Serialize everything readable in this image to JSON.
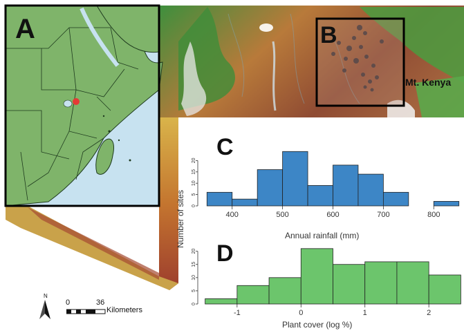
{
  "panels": {
    "a": {
      "letter": "A"
    },
    "b": {
      "letter": "B"
    },
    "c": {
      "letter": "C"
    },
    "d": {
      "letter": "D"
    }
  },
  "map": {
    "place_label": "Mt. Kenya",
    "colors": {
      "land": "#7fb46a",
      "ocean": "#c7e2f0",
      "site_dot": "#e53935",
      "terrain_green": "#4f9a3f",
      "terrain_brown": "#9a5a3a"
    }
  },
  "scalebar": {
    "north": "N",
    "start": "0",
    "mark": "36",
    "unit": "Kilometers",
    "icon": "north-arrow-icon"
  },
  "shared_ylabel": "Number of sites",
  "chart_data": [
    {
      "type": "bar",
      "title": "",
      "xlabel": "Annual rainfall (mm)",
      "ylabel": "Number of sites",
      "bin_edges": [
        350,
        400,
        450,
        500,
        550,
        600,
        650,
        700,
        750,
        800,
        850
      ],
      "values": [
        6,
        3,
        16,
        24,
        9,
        18,
        14,
        6,
        0,
        2
      ],
      "xticks": [
        400,
        500,
        600,
        700,
        800
      ],
      "xtick_labels": [
        "400",
        "500",
        "600",
        "700",
        "800"
      ],
      "yticks": [
        0,
        5,
        10,
        15,
        20
      ],
      "xlim": [
        340,
        860
      ],
      "ylim": [
        0,
        25
      ],
      "color": "#3d86c6"
    },
    {
      "type": "bar",
      "title": "",
      "xlabel": "Plant cover (log %)",
      "ylabel": "Number of sites",
      "bin_edges": [
        -1.5,
        -1.0,
        -0.5,
        0.0,
        0.5,
        1.0,
        1.5,
        2.0,
        2.5
      ],
      "values": [
        2,
        7,
        10,
        21,
        15,
        16,
        16,
        11
      ],
      "xticks": [
        -1,
        0,
        1,
        2
      ],
      "xtick_labels": [
        "-1",
        "0",
        "1",
        "2"
      ],
      "yticks": [
        0,
        5,
        10,
        15,
        20
      ],
      "xlim": [
        -1.55,
        2.55
      ],
      "ylim": [
        0,
        22
      ],
      "color": "#6cc56c"
    }
  ]
}
